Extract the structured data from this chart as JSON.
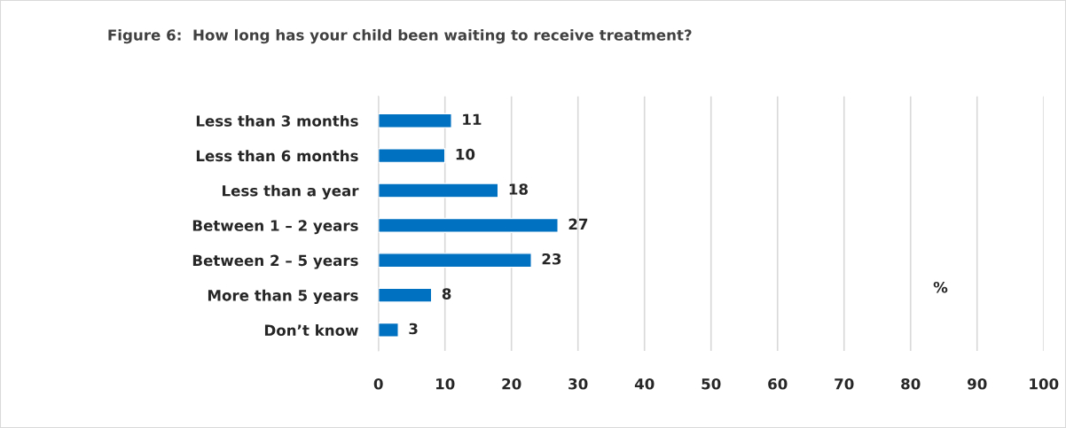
{
  "chart_data": {
    "type": "bar",
    "orientation": "horizontal",
    "title": "Figure 6:  How long has your child been waiting to receive treatment?",
    "xlabel": "%",
    "categories": [
      "Less than 3 months",
      "Less than 6 months",
      "Less than a year",
      "Between 1 – 2 years",
      "Between 2 – 5 years",
      "More than 5 years",
      "Don’t know"
    ],
    "values": [
      11,
      10,
      18,
      27,
      23,
      8,
      3
    ],
    "color": "#0070c0",
    "xlim": [
      0,
      100
    ],
    "xticks": [
      0,
      10,
      20,
      30,
      40,
      50,
      60,
      70,
      80,
      90,
      100
    ],
    "grid": "x",
    "data_labels": true,
    "legend": false
  }
}
